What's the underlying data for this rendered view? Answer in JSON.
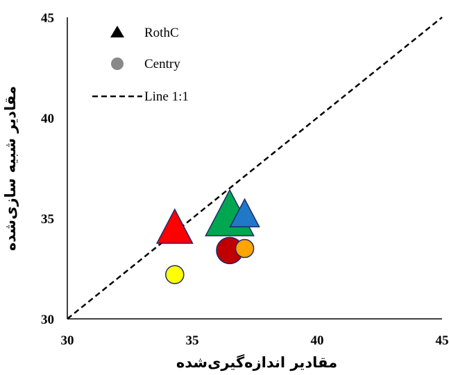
{
  "chart_data": {
    "type": "scatter",
    "xlabel": "مقادیر اندازه‌گیری‌شده",
    "ylabel": "مقادیر شبیه سازی‌شده",
    "xlim": [
      30,
      45
    ],
    "ylim": [
      30,
      45
    ],
    "x_ticks": [
      "30",
      "35",
      "40",
      "45"
    ],
    "y_ticks": [
      "30",
      "35",
      "40",
      "45"
    ],
    "grid": false,
    "legend_position": "top-left",
    "legend": [
      {
        "label": "RothC",
        "marker": "triangle",
        "color": "#000000"
      },
      {
        "label": "Centry",
        "marker": "circle",
        "color": "#888888"
      },
      {
        "label": "Line 1:1",
        "marker": "dashed-line",
        "color": "#000000"
      }
    ],
    "reference_line": {
      "name": "Line 1:1",
      "from": [
        30,
        30
      ],
      "to": [
        45,
        45
      ]
    },
    "series": [
      {
        "name": "RothC",
        "marker": "triangle",
        "points": [
          {
            "x": 34.3,
            "y": 34.4,
            "color": "#ff0000"
          },
          {
            "x": 36.5,
            "y": 35.0,
            "color": "#00a650"
          },
          {
            "x": 37.1,
            "y": 35.1,
            "color": "#1f78c8"
          }
        ]
      },
      {
        "name": "Centry",
        "marker": "circle",
        "points": [
          {
            "x": 34.3,
            "y": 32.2,
            "color": "#ffff00"
          },
          {
            "x": 36.5,
            "y": 33.4,
            "color": "#c00000"
          },
          {
            "x": 37.1,
            "y": 33.5,
            "color": "#ffa500"
          }
        ]
      }
    ]
  }
}
